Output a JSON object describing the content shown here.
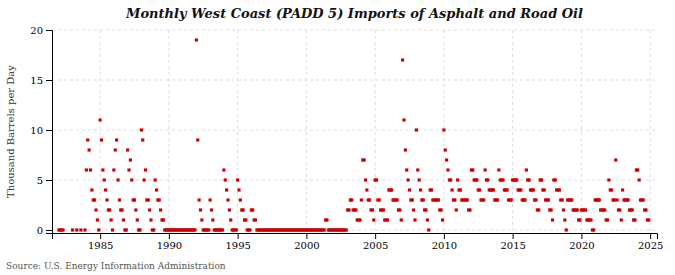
{
  "chart_data": {
    "type": "scatter",
    "title": "Monthly West Coast (PADD 5) Imports of Asphalt and Road Oil",
    "ylabel": "Thousand Barrels per Day",
    "source": "Source: U.S. Energy Information Administration",
    "color": "#cc0000",
    "marker": "square",
    "grid": true,
    "xlim": [
      1981.5,
      2025.5
    ],
    "ylim": [
      -0.3,
      20
    ],
    "xticks": [
      1985,
      1990,
      1995,
      2000,
      2005,
      2010,
      2015,
      2020,
      2025
    ],
    "yticks": [
      0,
      5,
      10,
      15,
      20
    ],
    "x": [
      1982,
      1982.1,
      1982.2,
      1982.3,
      1983,
      1983.3,
      1983.6,
      1983.9,
      1984,
      1984.1,
      1984.2,
      1984.3,
      1984.4,
      1984.5,
      1984.6,
      1984.7,
      1984.8,
      1984.9,
      1985,
      1985.1,
      1985.2,
      1985.3,
      1985.4,
      1985.5,
      1985.6,
      1985.7,
      1985.8,
      1985.9,
      1986,
      1986.1,
      1986.2,
      1986.3,
      1986.4,
      1986.5,
      1986.6,
      1986.7,
      1986.8,
      1986.9,
      1987,
      1987.1,
      1987.2,
      1987.3,
      1987.4,
      1987.5,
      1987.6,
      1987.7,
      1987.8,
      1987.9,
      1988,
      1988.1,
      1988.2,
      1988.3,
      1988.4,
      1988.5,
      1988.6,
      1988.7,
      1988.8,
      1988.9,
      1989,
      1989.1,
      1989.2,
      1989.3,
      1989.4,
      1989.5,
      1989.6,
      1989.7,
      1989.8,
      1989.9,
      1990,
      1990.1,
      1990.2,
      1990.3,
      1990.4,
      1990.5,
      1990.6,
      1990.7,
      1990.8,
      1990.9,
      1991,
      1991.1,
      1991.2,
      1991.3,
      1991.4,
      1991.5,
      1991.6,
      1991.7,
      1991.8,
      1991.9,
      1992,
      1992.1,
      1992.2,
      1992.3,
      1992.4,
      1992.5,
      1992.6,
      1992.7,
      1992.8,
      1992.9,
      1993,
      1993.1,
      1993.2,
      1993.3,
      1993.4,
      1993.5,
      1993.6,
      1993.7,
      1993.8,
      1993.9,
      1994,
      1994.1,
      1994.2,
      1994.3,
      1994.4,
      1994.5,
      1994.6,
      1994.7,
      1994.8,
      1994.9,
      1995,
      1995.1,
      1995.2,
      1995.3,
      1995.4,
      1995.5,
      1995.6,
      1995.7,
      1995.8,
      1995.9,
      1996,
      1996.1,
      1996.2,
      1996.3,
      1996.4,
      1996.5,
      1996.6,
      1996.7,
      1996.8,
      1996.9,
      1997,
      1997.1,
      1997.2,
      1997.3,
      1997.4,
      1997.5,
      1997.6,
      1997.7,
      1997.8,
      1997.9,
      1998,
      1998.1,
      1998.2,
      1998.3,
      1998.4,
      1998.5,
      1998.6,
      1998.7,
      1998.8,
      1998.9,
      1999,
      1999.1,
      1999.2,
      1999.3,
      1999.4,
      1999.5,
      1999.6,
      1999.7,
      1999.8,
      1999.9,
      2000,
      2000.1,
      2000.2,
      2000.3,
      2000.4,
      2000.5,
      2000.6,
      2000.7,
      2000.8,
      2000.9,
      2001,
      2001.1,
      2001.2,
      2001.3,
      2001.4,
      2001.5,
      2001.6,
      2001.7,
      2001.8,
      2001.9,
      2002,
      2002.1,
      2002.2,
      2002.3,
      2002.4,
      2002.5,
      2002.6,
      2002.7,
      2002.8,
      2002.9,
      2003,
      2003.1,
      2003.2,
      2003.3,
      2003.4,
      2003.5,
      2003.6,
      2003.7,
      2003.8,
      2003.9,
      2004,
      2004.1,
      2004.2,
      2004.3,
      2004.4,
      2004.5,
      2004.6,
      2004.7,
      2004.8,
      2004.9,
      2005,
      2005.1,
      2005.2,
      2005.3,
      2005.4,
      2005.5,
      2005.6,
      2005.7,
      2005.8,
      2005.9,
      2006,
      2006.1,
      2006.2,
      2006.3,
      2006.4,
      2006.5,
      2006.6,
      2006.7,
      2006.8,
      2006.9,
      2007,
      2007.1,
      2007.2,
      2007.3,
      2007.4,
      2007.5,
      2007.6,
      2007.7,
      2007.8,
      2007.9,
      2008,
      2008.1,
      2008.2,
      2008.3,
      2008.4,
      2008.5,
      2008.6,
      2008.7,
      2008.8,
      2008.9,
      2009,
      2009.1,
      2009.2,
      2009.3,
      2009.4,
      2009.5,
      2009.6,
      2009.7,
      2009.8,
      2009.9,
      2010,
      2010.1,
      2010.2,
      2010.3,
      2010.4,
      2010.5,
      2010.6,
      2010.7,
      2010.8,
      2010.9,
      2011,
      2011.1,
      2011.2,
      2011.3,
      2011.4,
      2011.5,
      2011.6,
      2011.7,
      2011.8,
      2011.9,
      2012,
      2012.1,
      2012.2,
      2012.3,
      2012.4,
      2012.5,
      2012.6,
      2012.7,
      2012.8,
      2012.9,
      2013,
      2013.1,
      2013.2,
      2013.3,
      2013.4,
      2013.5,
      2013.6,
      2013.7,
      2013.8,
      2013.9,
      2014,
      2014.1,
      2014.2,
      2014.3,
      2014.4,
      2014.5,
      2014.6,
      2014.7,
      2014.8,
      2014.9,
      2015,
      2015.1,
      2015.2,
      2015.3,
      2015.4,
      2015.5,
      2015.6,
      2015.7,
      2015.8,
      2015.9,
      2016,
      2016.1,
      2016.2,
      2016.3,
      2016.4,
      2016.5,
      2016.6,
      2016.7,
      2016.8,
      2016.9,
      2017,
      2017.1,
      2017.2,
      2017.3,
      2017.4,
      2017.5,
      2017.6,
      2017.7,
      2017.8,
      2017.9,
      2018,
      2018.1,
      2018.2,
      2018.3,
      2018.4,
      2018.5,
      2018.6,
      2018.7,
      2018.8,
      2018.9,
      2019,
      2019.1,
      2019.2,
      2019.3,
      2019.4,
      2019.5,
      2019.6,
      2019.7,
      2019.8,
      2019.9,
      2020,
      2020.1,
      2020.2,
      2020.3,
      2020.4,
      2020.5,
      2020.6,
      2020.7,
      2020.8,
      2020.9,
      2021,
      2021.1,
      2021.2,
      2021.3,
      2021.4,
      2021.5,
      2021.6,
      2021.7,
      2021.8,
      2021.9,
      2022,
      2022.1,
      2022.2,
      2022.3,
      2022.4,
      2022.5,
      2022.6,
      2022.7,
      2022.8,
      2022.9,
      2023,
      2023.1,
      2023.2,
      2023.3,
      2023.4,
      2023.5,
      2023.6,
      2023.7,
      2023.8,
      2023.9,
      2024,
      2024.1,
      2024.2,
      2024.3,
      2024.4,
      2024.5,
      2024.6,
      2024.7,
      2024.8,
      2024.9
    ],
    "values": [
      0,
      0,
      0,
      0,
      0,
      0,
      0,
      0,
      6,
      9,
      8,
      6,
      4,
      3,
      3,
      2,
      1,
      0,
      11,
      9,
      6,
      5,
      4,
      3,
      2,
      2,
      1,
      0,
      6,
      8,
      9,
      5,
      3,
      2,
      2,
      1,
      0,
      0,
      8,
      6,
      7,
      5,
      3,
      3,
      2,
      1,
      0,
      0,
      10,
      9,
      5,
      6,
      3,
      3,
      2,
      1,
      0,
      0,
      5,
      4,
      3,
      3,
      2,
      1,
      1,
      0,
      0,
      0,
      0,
      0,
      0,
      0,
      0,
      0,
      0,
      0,
      0,
      0,
      0,
      0,
      0,
      0,
      0,
      0,
      0,
      0,
      0,
      0,
      19,
      9,
      3,
      2,
      1,
      0,
      0,
      0,
      0,
      0,
      3,
      2,
      1,
      0,
      0,
      0,
      0,
      0,
      0,
      0,
      6,
      5,
      4,
      3,
      2,
      1,
      0,
      0,
      0,
      0,
      5,
      4,
      3,
      2,
      2,
      1,
      1,
      0,
      0,
      0,
      2,
      2,
      1,
      1,
      0,
      0,
      0,
      0,
      0,
      0,
      0,
      0,
      0,
      0,
      0,
      0,
      0,
      0,
      0,
      0,
      0,
      0,
      0,
      0,
      0,
      0,
      0,
      0,
      0,
      0,
      0,
      0,
      0,
      0,
      0,
      0,
      0,
      0,
      0,
      0,
      0,
      0,
      0,
      0,
      0,
      0,
      0,
      0,
      0,
      0,
      0,
      0,
      0,
      0,
      1,
      1,
      0,
      0,
      0,
      0,
      0,
      0,
      0,
      0,
      0,
      0,
      0,
      0,
      0,
      0,
      2,
      2,
      3,
      3,
      2,
      2,
      2,
      1,
      1,
      1,
      3,
      7,
      7,
      5,
      4,
      3,
      3,
      2,
      2,
      1,
      5,
      5,
      3,
      3,
      2,
      2,
      2,
      1,
      1,
      1,
      4,
      4,
      4,
      3,
      3,
      3,
      3,
      2,
      2,
      1,
      17,
      11,
      8,
      6,
      5,
      4,
      3,
      3,
      2,
      1,
      10,
      6,
      5,
      4,
      3,
      3,
      2,
      2,
      1,
      0,
      4,
      4,
      3,
      3,
      3,
      3,
      3,
      2,
      2,
      1,
      10,
      8,
      7,
      6,
      5,
      5,
      4,
      3,
      3,
      2,
      5,
      4,
      4,
      3,
      3,
      3,
      3,
      3,
      2,
      2,
      6,
      6,
      5,
      5,
      5,
      4,
      4,
      3,
      3,
      3,
      6,
      5,
      5,
      4,
      4,
      4,
      4,
      3,
      3,
      3,
      6,
      5,
      5,
      5,
      4,
      4,
      4,
      3,
      3,
      3,
      5,
      5,
      5,
      5,
      4,
      4,
      4,
      3,
      3,
      3,
      6,
      5,
      5,
      4,
      4,
      4,
      3,
      3,
      2,
      2,
      5,
      5,
      4,
      4,
      3,
      3,
      3,
      2,
      2,
      1,
      5,
      5,
      4,
      4,
      4,
      3,
      3,
      2,
      1,
      0,
      3,
      3,
      3,
      3,
      2,
      2,
      2,
      2,
      1,
      1,
      2,
      2,
      2,
      2,
      1,
      1,
      1,
      1,
      0,
      0,
      3,
      3,
      3,
      3,
      2,
      2,
      2,
      2,
      1,
      1,
      5,
      4,
      4,
      3,
      3,
      7,
      3,
      2,
      2,
      1,
      4,
      3,
      3,
      3,
      3,
      2,
      2,
      2,
      1,
      1,
      6,
      6,
      5,
      3,
      3,
      3,
      2,
      2,
      1,
      1
    ]
  }
}
